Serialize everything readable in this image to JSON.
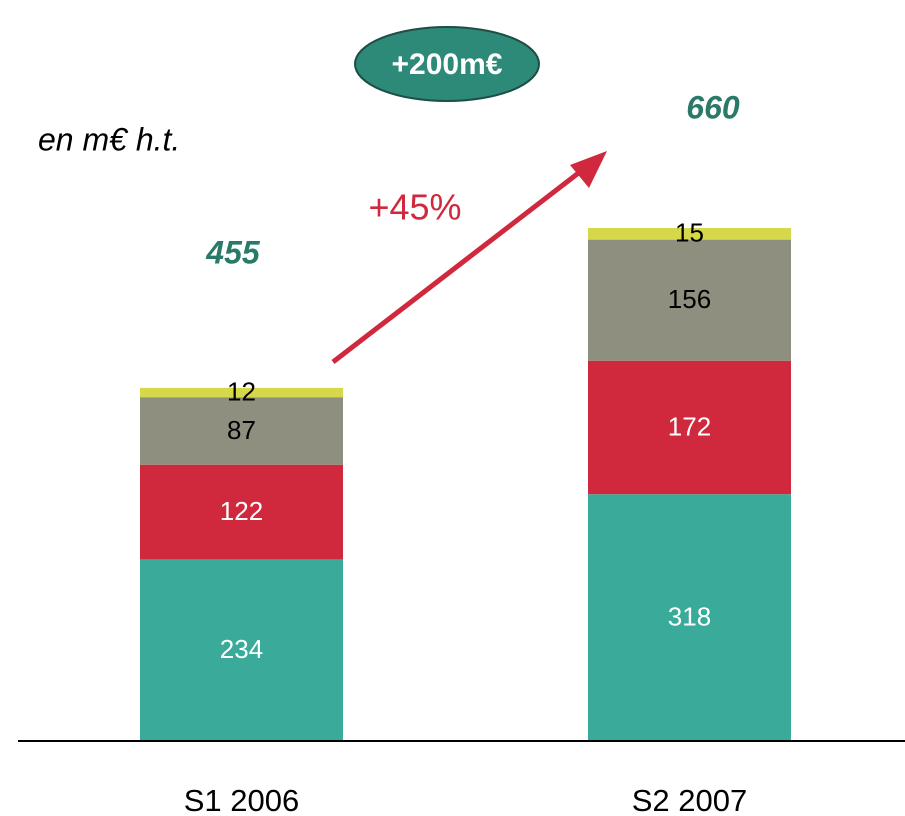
{
  "chart_data": {
    "type": "stacked_bar",
    "subtitle": "en m€ h.t.",
    "categories": [
      "S1 2006",
      "S2 2007"
    ],
    "series": [
      {
        "color": "#3aaa9a",
        "label_color": "#ffffff",
        "values": [
          234,
          318
        ]
      },
      {
        "color": "#d0283c",
        "label_color": "#ffffff",
        "values": [
          122,
          172
        ]
      },
      {
        "color": "#8f8f7f",
        "label_color": "#000000",
        "values": [
          87,
          156
        ]
      },
      {
        "color": "#d4d84a",
        "label_color": "#000000",
        "values": [
          12,
          15
        ]
      }
    ],
    "totals": [
      455,
      660
    ],
    "annotations": [
      "+200m€",
      "+45%"
    ]
  }
}
